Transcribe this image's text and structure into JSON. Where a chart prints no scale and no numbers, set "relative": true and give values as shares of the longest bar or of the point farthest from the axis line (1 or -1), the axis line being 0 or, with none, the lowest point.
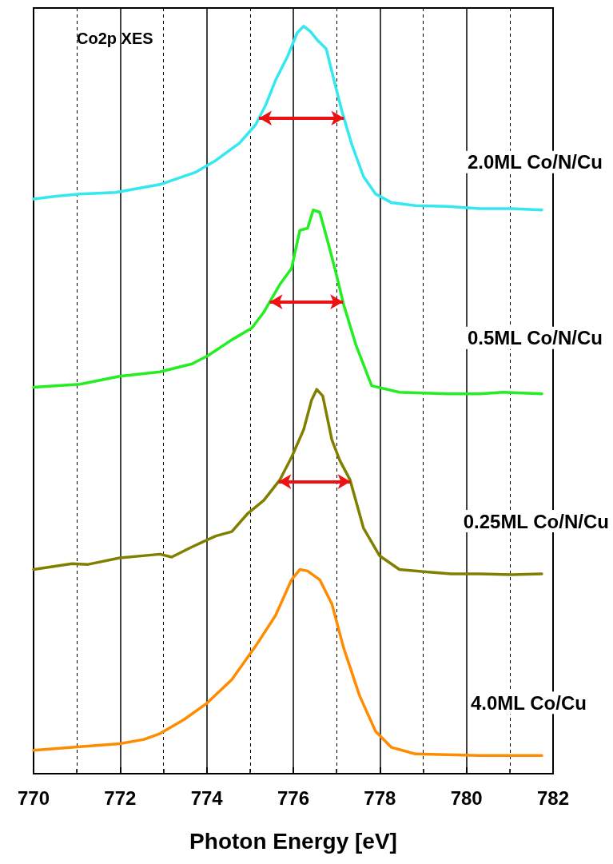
{
  "chart_data": {
    "type": "line",
    "relative": true,
    "xlabel": "Photon Energy [eV]",
    "xlim": [
      770,
      782
    ],
    "xticks": [
      770,
      {
        "value": 771,
        "label": null
      },
      772,
      {
        "value": 773,
        "label": null
      },
      774,
      {
        "value": 775,
        "label": null
      },
      776,
      {
        "value": 777,
        "label": null
      },
      778,
      {
        "value": 779,
        "label": null
      },
      780,
      {
        "value": 781,
        "label": null
      },
      782
    ],
    "grid": "x",
    "legend": false,
    "marker": "none",
    "line_style": "solid",
    "annotations": [
      "Co2p XES"
    ],
    "series": [
      {
        "name": "2.0ML Co/N/Cu",
        "color": "#33e8f0",
        "x": [
          770.0,
          770.52,
          771.07,
          771.9,
          772.18,
          772.92,
          773.75,
          774.21,
          774.76,
          775.13,
          775.37,
          775.59,
          775.87,
          776.09,
          776.24,
          776.39,
          776.57,
          776.76,
          776.94,
          777.13,
          777.35,
          777.62,
          777.9,
          778.27,
          778.82,
          779.56,
          780.3,
          781.04,
          781.74
        ],
        "values": [
          0.763,
          0.767,
          0.77,
          0.772,
          0.775,
          0.783,
          0.8,
          0.816,
          0.84,
          0.865,
          0.893,
          0.926,
          0.959,
          0.991,
          1.0,
          0.993,
          0.98,
          0.969,
          0.926,
          0.882,
          0.838,
          0.794,
          0.77,
          0.758,
          0.754,
          0.753,
          0.75,
          0.75,
          0.748
        ]
      },
      {
        "name": "0.5ML Co/N/Cu",
        "color": "#22ee22",
        "x": [
          770.0,
          771.07,
          771.99,
          772.92,
          773.66,
          774.02,
          774.58,
          775.04,
          775.32,
          775.69,
          775.96,
          776.15,
          776.33,
          776.46,
          776.61,
          776.79,
          776.98,
          777.16,
          777.44,
          777.81,
          778.45,
          779.56,
          780.3,
          780.85,
          781.74
        ],
        "values": [
          0.505,
          0.509,
          0.52,
          0.526,
          0.537,
          0.548,
          0.57,
          0.586,
          0.608,
          0.646,
          0.668,
          0.72,
          0.723,
          0.748,
          0.745,
          0.706,
          0.663,
          0.619,
          0.564,
          0.507,
          0.498,
          0.496,
          0.496,
          0.498,
          0.496
        ]
      },
      {
        "name": "0.25ML Co/N/Cu",
        "color": "#808000",
        "x": [
          770.0,
          770.89,
          771.26,
          771.99,
          772.92,
          773.19,
          773.66,
          774.21,
          774.58,
          774.95,
          775.32,
          775.69,
          775.96,
          776.24,
          776.42,
          776.54,
          776.68,
          776.89,
          777.07,
          777.31,
          777.62,
          777.99,
          778.45,
          779.01,
          779.65,
          780.3,
          781.04,
          781.74
        ],
        "values": [
          0.255,
          0.263,
          0.262,
          0.271,
          0.276,
          0.272,
          0.286,
          0.301,
          0.307,
          0.332,
          0.35,
          0.378,
          0.409,
          0.447,
          0.487,
          0.502,
          0.493,
          0.433,
          0.405,
          0.378,
          0.312,
          0.274,
          0.255,
          0.252,
          0.249,
          0.249,
          0.248,
          0.249
        ]
      },
      {
        "name": "4.0ML Co/Cu",
        "color": "#ff8c00",
        "x": [
          770.0,
          771.07,
          771.99,
          772.55,
          772.92,
          773.47,
          773.99,
          774.58,
          775.13,
          775.59,
          775.96,
          776.15,
          776.33,
          776.61,
          776.89,
          777.16,
          777.53,
          777.9,
          778.27,
          778.82,
          780.3,
          781.74
        ],
        "values": [
          0.007,
          0.012,
          0.016,
          0.022,
          0.03,
          0.049,
          0.071,
          0.104,
          0.15,
          0.192,
          0.241,
          0.255,
          0.253,
          0.241,
          0.208,
          0.148,
          0.082,
          0.033,
          0.011,
          0.002,
          0,
          0
        ]
      }
    ]
  }
}
